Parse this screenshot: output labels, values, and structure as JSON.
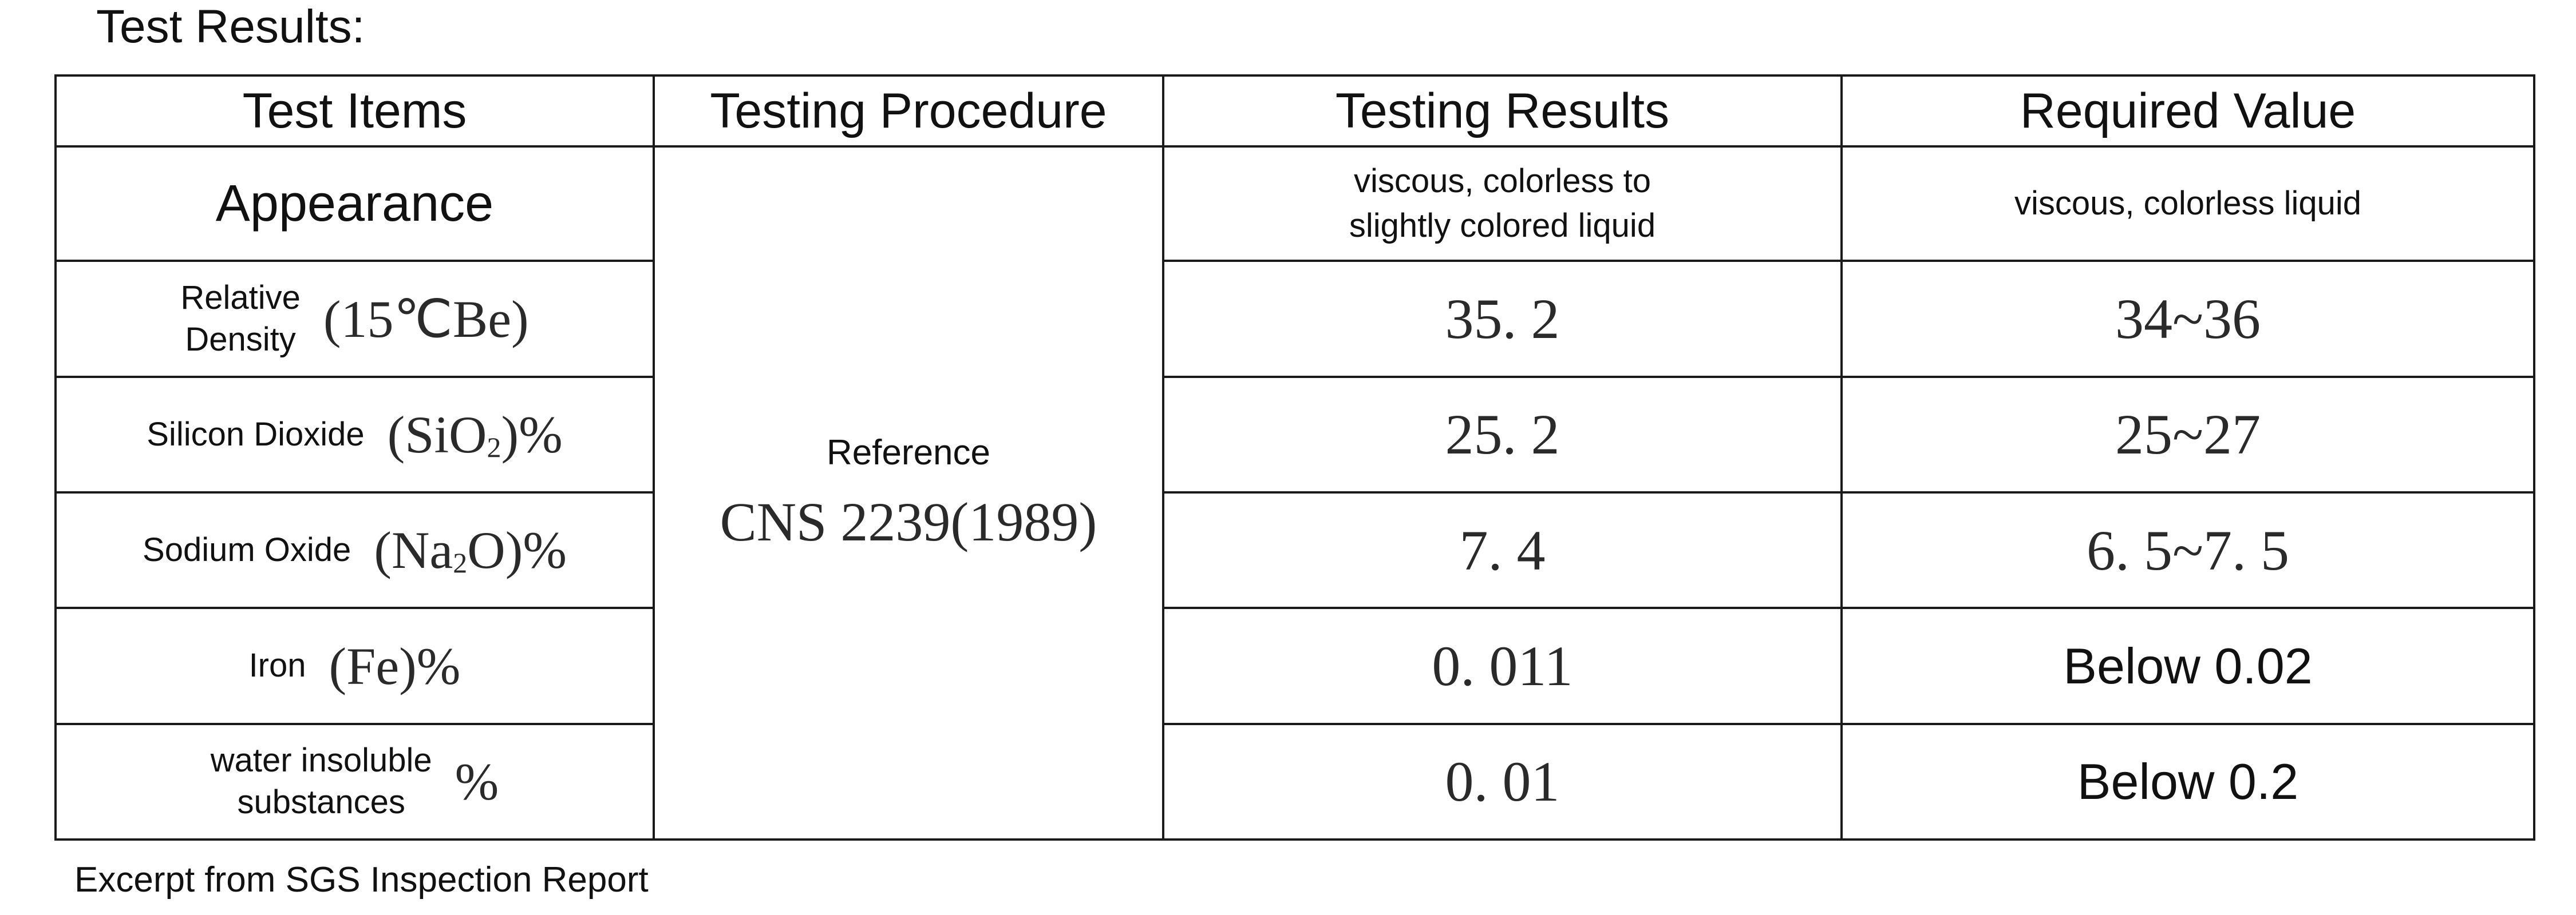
{
  "title": "Test Results:",
  "footnote": "Excerpt from SGS Inspection Report",
  "table": {
    "headers": [
      "Test Items",
      "Testing Procedure",
      "Testing Results",
      "Required Value"
    ],
    "procedure": {
      "line1": "Reference",
      "line2": "CNS 2239(1989)"
    },
    "rows": [
      {
        "item": "Appearance",
        "result_line1": "viscous, colorless to",
        "result_line2": "slightly colored liquid",
        "required": "viscous, colorless liquid"
      },
      {
        "item_line1": "Relative",
        "item_line2": "Density",
        "formula": "(15℃Be)",
        "result": "35. 2",
        "required": "34~36"
      },
      {
        "item": "Silicon Dioxide",
        "formula_pre": "(SiO",
        "formula_sub": "2",
        "formula_post": ")%",
        "result": "25. 2",
        "required": "25~27"
      },
      {
        "item": "Sodium Oxide",
        "formula_pre": "(Na",
        "formula_sub": "2",
        "formula_post": "O)%",
        "result": "7. 4",
        "required": "6. 5~7. 5"
      },
      {
        "item": "Iron",
        "formula": "(Fe)%",
        "result": "0. 011",
        "required": "Below 0.02"
      },
      {
        "item_line1": "water insoluble",
        "item_line2": "substances",
        "formula": "%",
        "result": "0. 01",
        "required": "Below 0.2"
      }
    ]
  }
}
